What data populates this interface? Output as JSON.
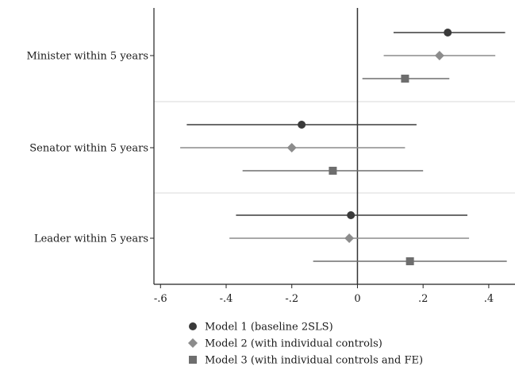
{
  "chart_data": {
    "type": "scatter",
    "subtype": "coefficient-plot",
    "title": "",
    "xlabel": "",
    "ylabel": "",
    "xlim": [
      -0.62,
      0.48
    ],
    "x_ticks": [
      -0.6,
      -0.4,
      -0.2,
      0,
      0.2,
      0.4
    ],
    "x_tick_labels": [
      "-.6",
      "-.4",
      "-.2",
      "0",
      ".2",
      ".4"
    ],
    "reference_line_x": 0,
    "grid": false,
    "legend_position": "bottom",
    "categories": [
      "Minister within 5 years",
      "Senator within 5 years",
      "Leader within 5 years"
    ],
    "series": [
      {
        "name": "Model 1 (baseline 2SLS)",
        "marker": "circle",
        "color": "#3a3a3a",
        "estimate": [
          0.275,
          -0.17,
          -0.02
        ],
        "ci_low": [
          0.11,
          -0.52,
          -0.37
        ],
        "ci_high": [
          0.45,
          0.18,
          0.335
        ]
      },
      {
        "name": "Model 2 (with individual controls)",
        "marker": "diamond",
        "color": "#8c8c8c",
        "estimate": [
          0.25,
          -0.2,
          -0.025
        ],
        "ci_low": [
          0.08,
          -0.54,
          -0.39
        ],
        "ci_high": [
          0.42,
          0.145,
          0.34
        ]
      },
      {
        "name": "Model 3 (with individual controls and FE)",
        "marker": "square",
        "color": "#6e6e6e",
        "estimate": [
          0.145,
          -0.075,
          0.16
        ],
        "ci_low": [
          0.015,
          -0.35,
          -0.135
        ],
        "ci_high": [
          0.28,
          0.2,
          0.455
        ]
      }
    ]
  }
}
